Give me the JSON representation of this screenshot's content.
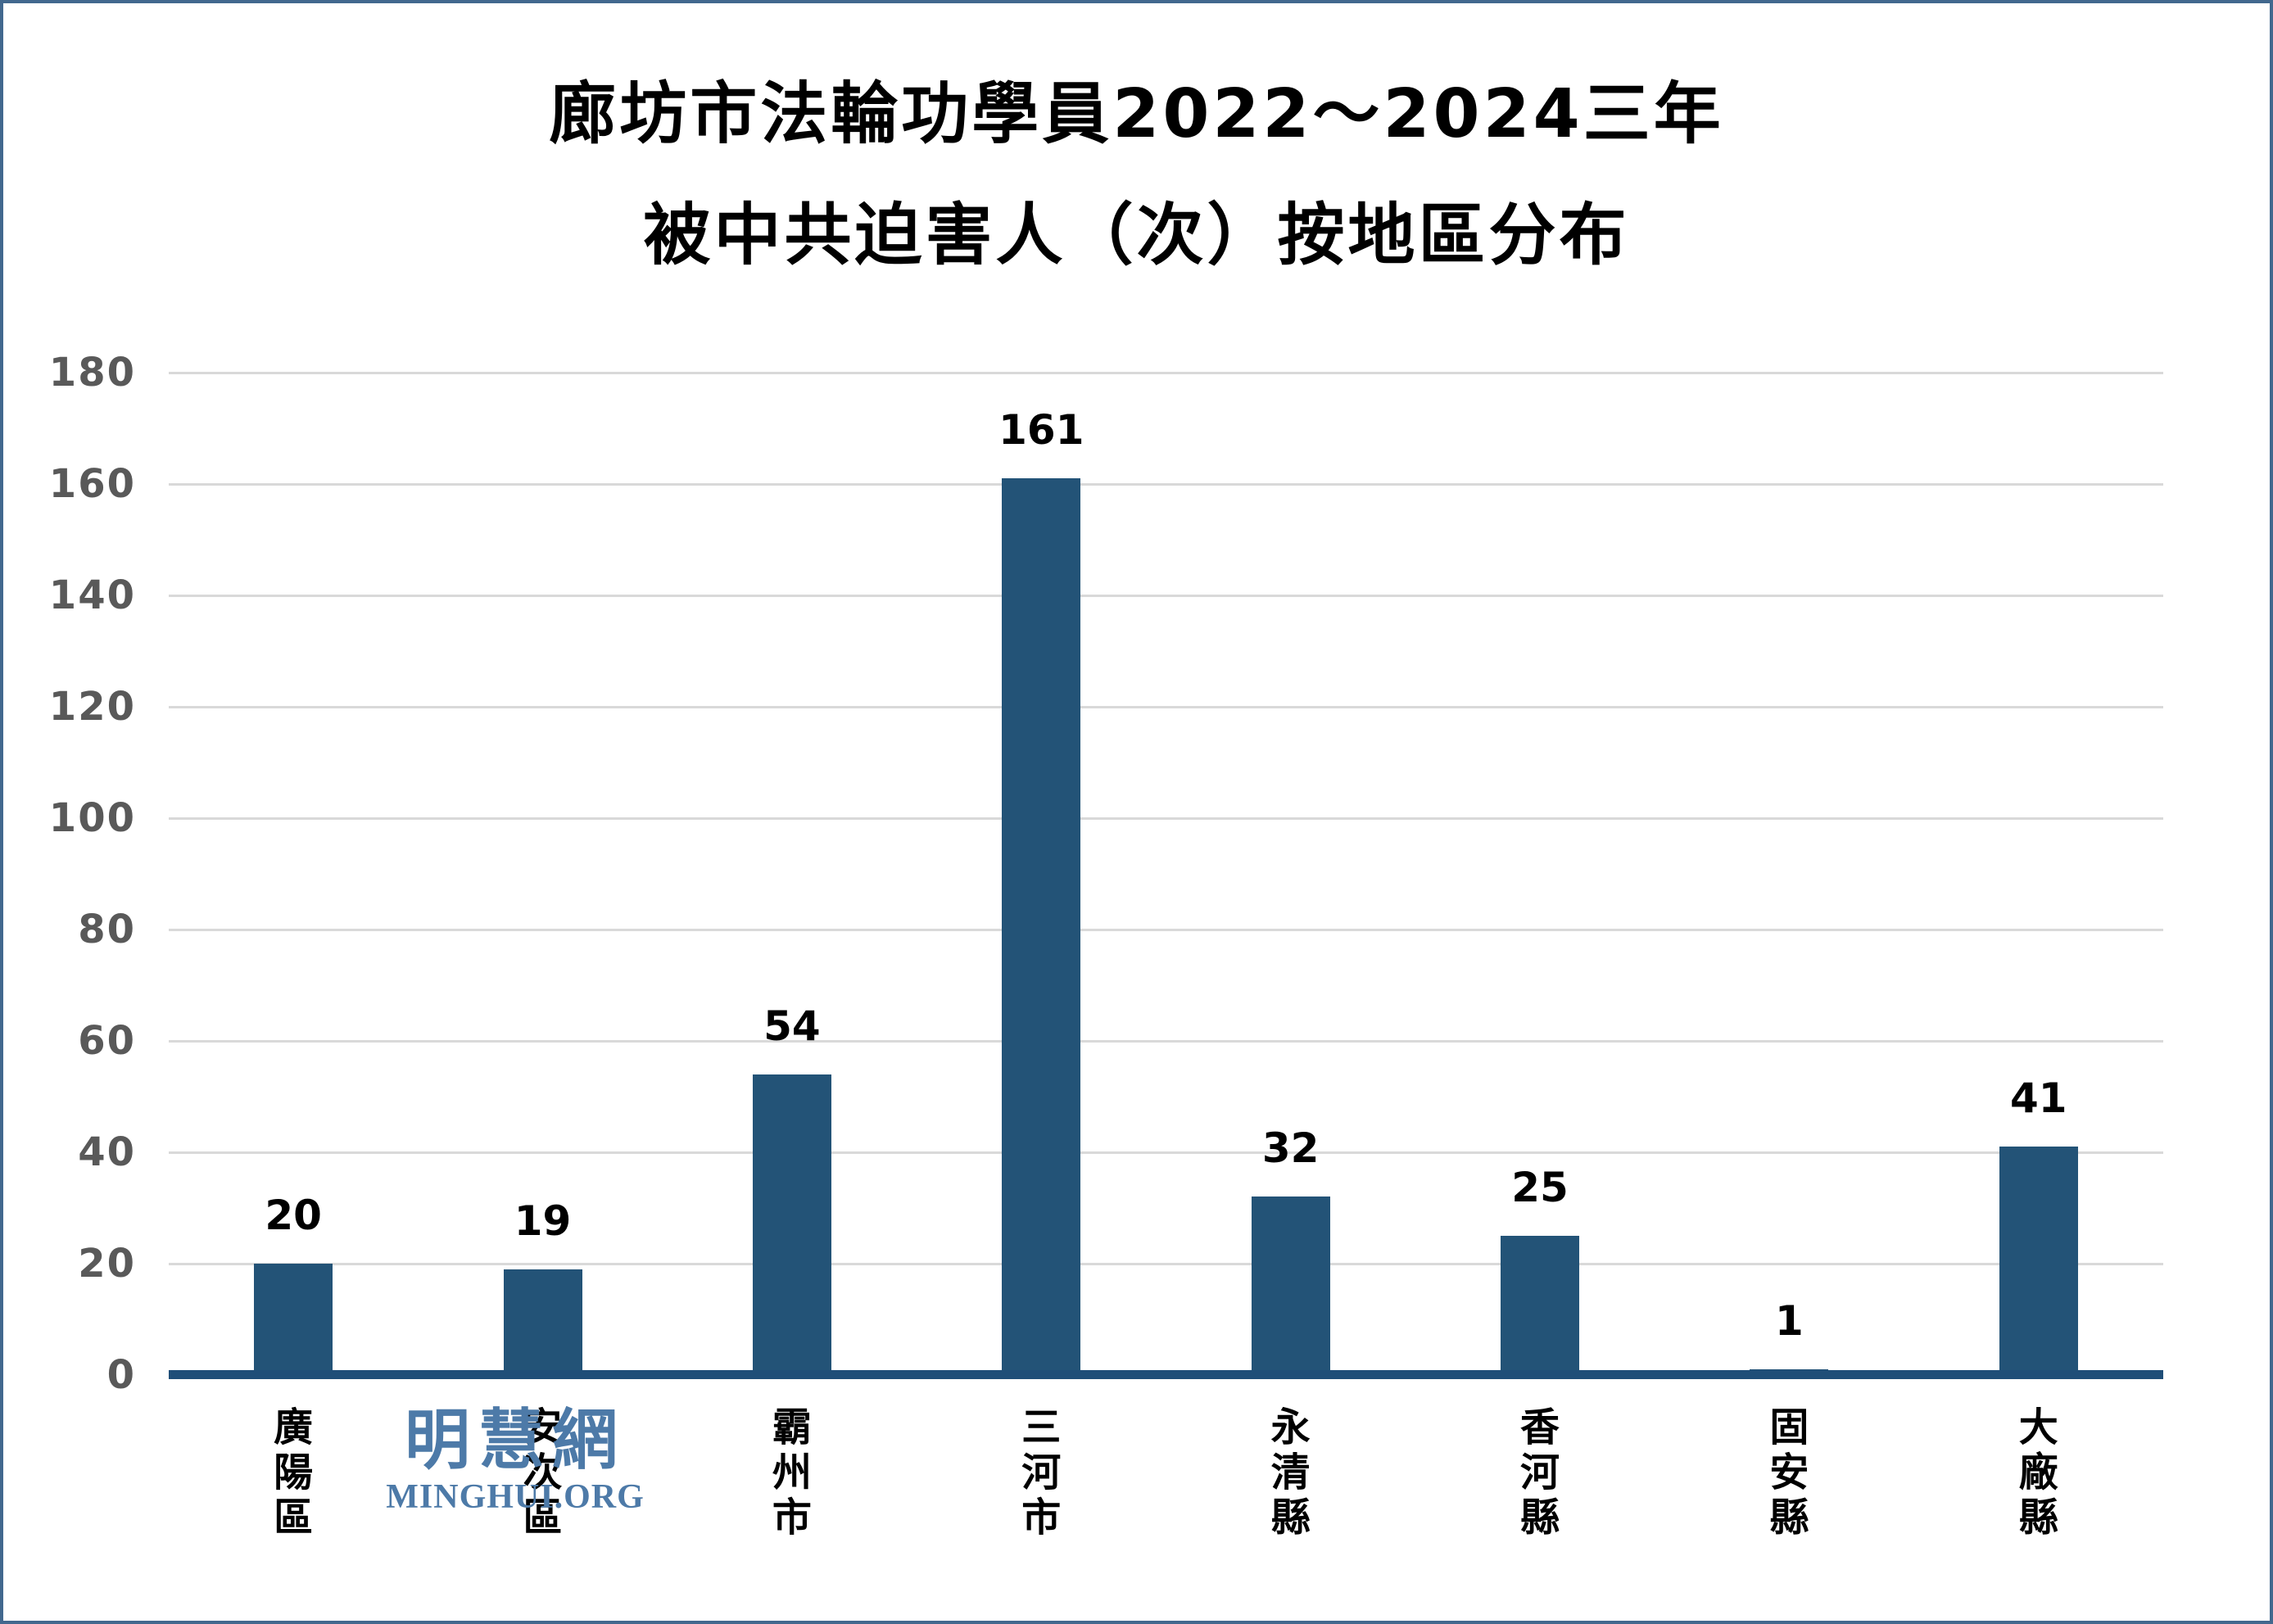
{
  "frame": {
    "background": "#ffffff",
    "border_color": "#42688e"
  },
  "title": {
    "line1": "廊坊市法輪功學員2022～2024三年",
    "line2": "被中共迫害人（次）按地區分布"
  },
  "watermark": {
    "cjk": "明慧網",
    "latin": "MINGHUI.ORG",
    "color": "#4d7aa8"
  },
  "chart_data": {
    "type": "bar",
    "title": "廊坊市法輪功學員2022～2024三年被中共迫害人（次）按地區分布",
    "categories": [
      "廣陽區",
      "安次區",
      "霸州市",
      "三河市",
      "永清縣",
      "香河縣",
      "固安縣",
      "大廠縣"
    ],
    "values": [
      20,
      19,
      54,
      161,
      32,
      25,
      1,
      41
    ],
    "xlabel": "",
    "ylabel": "",
    "ylim": [
      0,
      180
    ],
    "yticks": [
      0,
      20,
      40,
      60,
      80,
      100,
      120,
      140,
      160,
      180
    ],
    "grid": true,
    "legend": false,
    "data_labels": true,
    "bar_color": "#235377",
    "axis_color": "#1f4e78",
    "grid_color": "#d9d9d9",
    "tick_label_color": "#595959"
  }
}
